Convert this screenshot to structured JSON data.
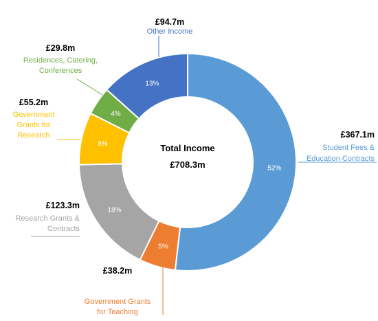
{
  "chart_data": {
    "type": "pie",
    "center_label": "Total Income",
    "center_value": "£708.3m",
    "slices": [
      {
        "name": "Student Fees & Education Contracts",
        "label_lines": [
          "Student Fees &",
          "Education Contracts"
        ],
        "amount": "£367.1m",
        "value": 367.1,
        "percent_label": "52%",
        "color": "#5B9BD5"
      },
      {
        "name": "Government Grants for Teaching",
        "label_lines": [
          "Government Grants",
          "for Teaching"
        ],
        "amount": "£38.2m",
        "value": 38.2,
        "percent_label": "5%",
        "color": "#ED7D31"
      },
      {
        "name": "Research Grants & Contracts",
        "label_lines": [
          "Research Grants &",
          "Contracts"
        ],
        "amount": "£123.3m",
        "value": 123.3,
        "percent_label": "18%",
        "color": "#A5A5A5"
      },
      {
        "name": "Government Grants for Research",
        "label_lines": [
          "Government",
          "Grants for",
          "Research"
        ],
        "amount": "£55.2m",
        "value": 55.2,
        "percent_label": "8%",
        "color": "#FFC000"
      },
      {
        "name": "Residences, Catering, Conferences",
        "label_lines": [
          "Residences, Catering,",
          "Conferences"
        ],
        "amount": "£29.8m",
        "value": 29.8,
        "percent_label": "4%",
        "color": "#70AD47"
      },
      {
        "name": "Other Income",
        "label_lines": [
          "Other Income"
        ],
        "amount": "£94.7m",
        "value": 94.7,
        "percent_label": "13%",
        "color": "#4472C4"
      }
    ]
  }
}
